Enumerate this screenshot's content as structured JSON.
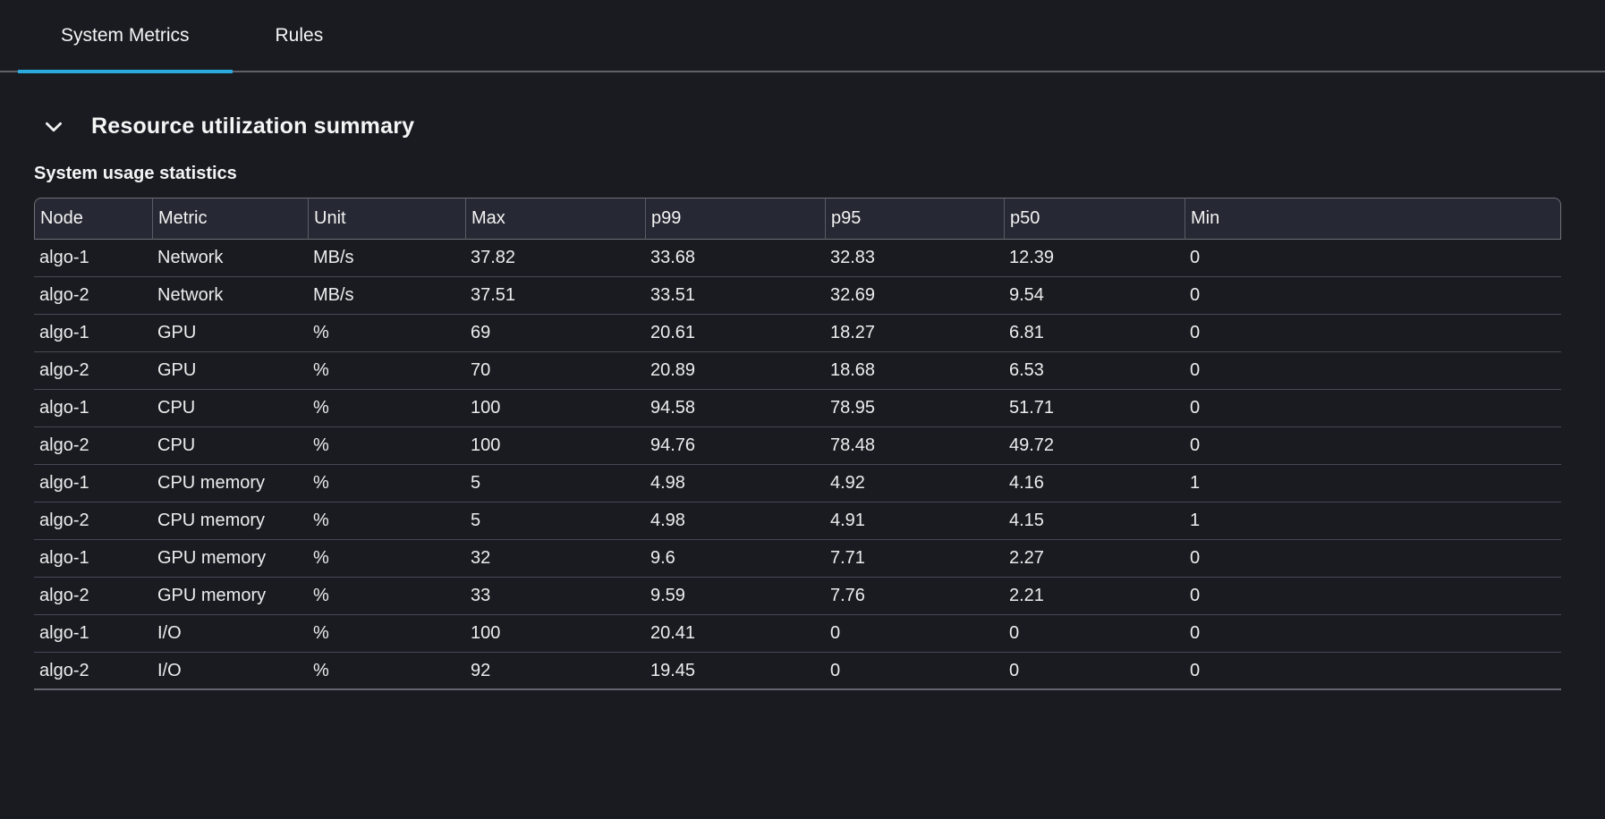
{
  "colors": {
    "accent": "#2ba8dd",
    "background": "#1a1b21",
    "table_header_bg": "#262933"
  },
  "tabs": {
    "items": [
      {
        "label": "System Metrics",
        "active": true
      },
      {
        "label": "Rules",
        "active": false
      }
    ]
  },
  "section": {
    "title": "Resource utilization summary",
    "icon": "chevron-down-icon",
    "expanded": true
  },
  "table": {
    "title": "System usage statistics",
    "columns": [
      "Node",
      "Metric",
      "Unit",
      "Max",
      "p99",
      "p95",
      "p50",
      "Min"
    ],
    "rows": [
      [
        "algo-1",
        "Network",
        "MB/s",
        "37.82",
        "33.68",
        "32.83",
        "12.39",
        "0"
      ],
      [
        "algo-2",
        "Network",
        "MB/s",
        "37.51",
        "33.51",
        "32.69",
        "9.54",
        "0"
      ],
      [
        "algo-1",
        "GPU",
        "%",
        "69",
        "20.61",
        "18.27",
        "6.81",
        "0"
      ],
      [
        "algo-2",
        "GPU",
        "%",
        "70",
        "20.89",
        "18.68",
        "6.53",
        "0"
      ],
      [
        "algo-1",
        "CPU",
        "%",
        "100",
        "94.58",
        "78.95",
        "51.71",
        "0"
      ],
      [
        "algo-2",
        "CPU",
        "%",
        "100",
        "94.76",
        "78.48",
        "49.72",
        "0"
      ],
      [
        "algo-1",
        "CPU memory",
        "%",
        "5",
        "4.98",
        "4.92",
        "4.16",
        "1"
      ],
      [
        "algo-2",
        "CPU memory",
        "%",
        "5",
        "4.98",
        "4.91",
        "4.15",
        "1"
      ],
      [
        "algo-1",
        "GPU memory",
        "%",
        "32",
        "9.6",
        "7.71",
        "2.27",
        "0"
      ],
      [
        "algo-2",
        "GPU memory",
        "%",
        "33",
        "9.59",
        "7.76",
        "2.21",
        "0"
      ],
      [
        "algo-1",
        "I/O",
        "%",
        "100",
        "20.41",
        "0",
        "0",
        "0"
      ],
      [
        "algo-2",
        "I/O",
        "%",
        "92",
        "19.45",
        "0",
        "0",
        "0"
      ]
    ]
  }
}
